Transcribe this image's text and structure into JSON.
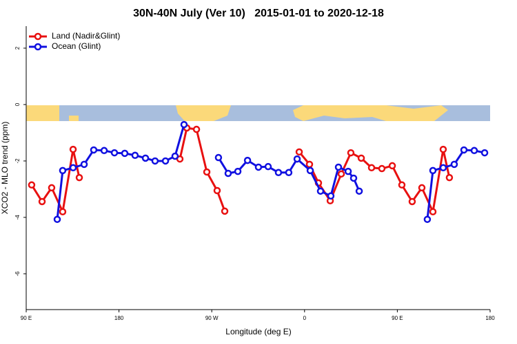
{
  "chart_data": {
    "type": "line",
    "title": "30N-40N July (Ver 10)   2015-01-01 to 2020-12-18",
    "x_label": "Longitude (deg E)",
    "y_label": "XCO2 - MLO trend (ppm)",
    "xlim": [
      90,
      540
    ],
    "ylim": [
      -7.27,
      2.78
    ],
    "xticks": [
      {
        "value": 90,
        "label": "90 E"
      },
      180,
      {
        "value": 270,
        "label": "90 W"
      },
      {
        "value": 360,
        "label": "0"
      },
      {
        "value": 450,
        "label": "90 E"
      },
      {
        "value": 540,
        "label": "180"
      }
    ],
    "yticks": [
      2,
      0,
      -2,
      -4,
      -6
    ],
    "legend": "top-left",
    "series": [
      {
        "name": "Land (Nadir&Glint)",
        "color": "#e81010",
        "x": [
          95.3,
          105.4,
          114.7,
          125.4,
          135.5,
          141.5,
          null,
          239.1,
          245.8,
          255.2,
          265.2,
          275.2,
          282.6,
          null,
          354.8,
          364.8,
          373.5,
          384.9,
          395.6,
          404.9,
          415.0,
          425.0,
          435.0,
          445.1,
          454.4,
          464.4,
          473.8,
          484.5,
          494.5,
          500.5
        ],
        "values": [
          -2.85,
          -3.44,
          -2.95,
          -3.8,
          -1.59,
          -2.59,
          null,
          -1.93,
          -0.83,
          -0.88,
          -2.39,
          -3.05,
          -3.78,
          null,
          -1.68,
          -2.12,
          -2.78,
          -3.41,
          -2.46,
          -1.71,
          -1.9,
          -2.24,
          -2.27,
          -2.17,
          -2.85,
          -3.44,
          -2.95,
          -3.8,
          -1.59,
          -2.59
        ]
      },
      {
        "name": "Ocean (Glint)",
        "color": "#1010e0",
        "x": [
          120.1,
          125.4,
          135.5,
          146.2,
          155.5,
          165.6,
          175.6,
          185.6,
          195.6,
          205.7,
          215.0,
          225.1,
          234.4,
          243.1,
          null,
          276.5,
          285.9,
          295.3,
          304.7,
          315.3,
          324.7,
          334.7,
          344.7,
          352.8,
          365.5,
          375.5,
          385.5,
          392.9,
          402.3,
          407.6,
          413.0,
          null,
          479.1,
          484.5,
          494.5,
          505.2,
          514.6,
          524.6,
          534.7
        ],
        "values": [
          -4.07,
          -2.34,
          -2.24,
          -2.12,
          -1.61,
          -1.63,
          -1.71,
          -1.73,
          -1.8,
          -1.9,
          -2.0,
          -2.0,
          -1.83,
          -0.71,
          null,
          -1.88,
          -2.44,
          -2.37,
          -1.98,
          -2.22,
          -2.2,
          -2.41,
          -2.41,
          -1.93,
          -2.34,
          -3.07,
          -3.24,
          -2.22,
          -2.37,
          -2.61,
          -3.07,
          null,
          -4.07,
          -2.34,
          -2.24,
          -2.12,
          -1.61,
          -1.63,
          -1.71
        ]
      }
    ]
  }
}
